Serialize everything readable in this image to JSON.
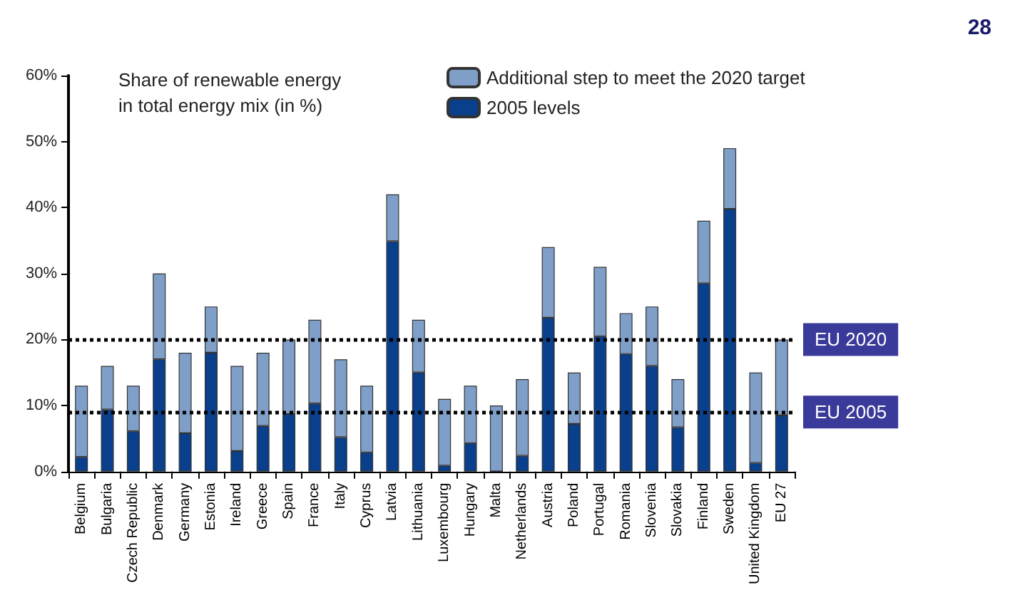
{
  "chart_data": {
    "type": "bar",
    "stacked": true,
    "title": "Share of renewable energy\nin total energy mix (in %)",
    "categories": [
      "Belgium",
      "Bulgaria",
      "Czech Republic",
      "Denmark",
      "Germany",
      "Estonia",
      "Ireland",
      "Greece",
      "Spain",
      "France",
      "Italy",
      "Cyprus",
      "Latvia",
      "Lithuania",
      "Luxembourg",
      "Hungary",
      "Malta",
      "Netherlands",
      "Austria",
      "Poland",
      "Portugal",
      "Romania",
      "Slovenia",
      "Slovakia",
      "Finland",
      "Sweden",
      "United Kingdom",
      "EU 27"
    ],
    "series": [
      {
        "name": "2005 levels",
        "color": "#0a3f8c",
        "values": [
          2.2,
          9.4,
          6.1,
          17,
          5.8,
          18,
          3.1,
          6.9,
          8.7,
          10.3,
          5.2,
          2.9,
          34.9,
          15,
          0.9,
          4.3,
          0,
          2.4,
          23.3,
          7.2,
          20.5,
          17.8,
          16,
          6.7,
          28.5,
          39.8,
          1.3,
          8.5
        ]
      },
      {
        "name": "Additional step to meet the 2020 target",
        "color": "#7f9fc8",
        "values": [
          10.8,
          6.6,
          6.9,
          13,
          12.2,
          7,
          12.9,
          11.1,
          11.3,
          12.7,
          11.8,
          10.1,
          7.1,
          8,
          10.1,
          8.7,
          10,
          11.6,
          10.7,
          7.8,
          10.5,
          6.2,
          9,
          7.3,
          9.5,
          9.2,
          13.7,
          11.5
        ]
      }
    ],
    "ylim": [
      0,
      60
    ],
    "yticks": [
      {
        "value": 0,
        "label": "0%"
      },
      {
        "value": 10,
        "label": "10%"
      },
      {
        "value": 20,
        "label": "20%"
      },
      {
        "value": 30,
        "label": "30%"
      },
      {
        "value": 40,
        "label": "40%"
      },
      {
        "value": 50,
        "label": "50%"
      },
      {
        "value": 60,
        "label": "60%"
      }
    ],
    "grid": false,
    "legend": "top",
    "ref_lines": [
      {
        "axis": "y",
        "value": 20,
        "label": "EU 2020",
        "color": "#000000",
        "line_style": "dotted"
      },
      {
        "axis": "y",
        "value": 9,
        "label": "EU 2005",
        "color": "#000000",
        "line_style": "dotted"
      }
    ],
    "annotations": [
      "28"
    ]
  }
}
